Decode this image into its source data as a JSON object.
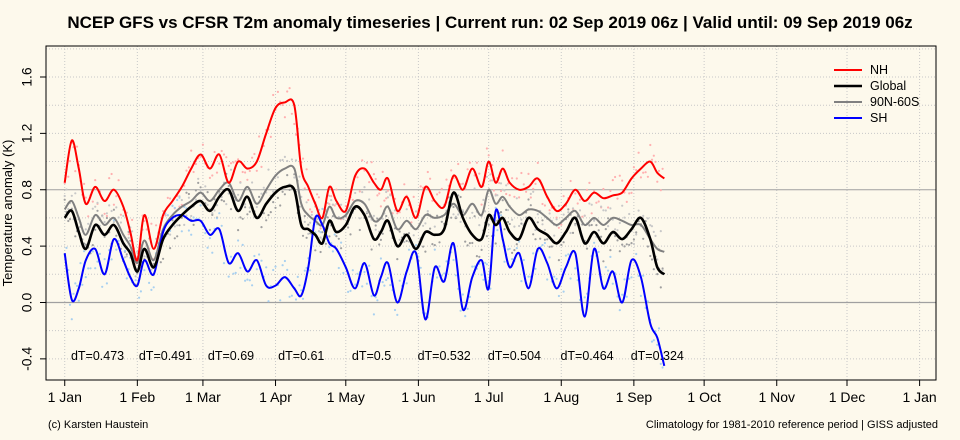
{
  "chart_data": {
    "type": "line",
    "title": "NCEP GFS vs CFSR T2m anomaly timeseries | Current run: 02 Sep 2019 06z | Valid until: 09 Sep 2019 06z",
    "xlabel": "",
    "ylabel": "Temperature anomaly (K)",
    "ylim": [
      -0.55,
      1.82
    ],
    "xlim": [
      -8,
      372
    ],
    "yticks": [
      -0.4,
      0.0,
      0.4,
      0.8,
      1.2,
      1.6
    ],
    "xticks": [
      {
        "day": 0,
        "label": "1 Jan"
      },
      {
        "day": 31,
        "label": "1 Feb"
      },
      {
        "day": 59,
        "label": "1 Mar"
      },
      {
        "day": 90,
        "label": "1 Apr"
      },
      {
        "day": 120,
        "label": "1 May"
      },
      {
        "day": 151,
        "label": "1 Jun"
      },
      {
        "day": 181,
        "label": "1 Jul"
      },
      {
        "day": 212,
        "label": "1 Aug"
      },
      {
        "day": 243,
        "label": "1 Sep"
      },
      {
        "day": 273,
        "label": "1 Oct"
      },
      {
        "day": 304,
        "label": "1 Nov"
      },
      {
        "day": 334,
        "label": "1 Dec"
      },
      {
        "day": 365,
        "label": "1 Jan"
      }
    ],
    "grid": true,
    "legend_position": "top-right",
    "series": [
      {
        "name": "NH",
        "color": "#ff0000",
        "dots_color": "#ffb0b0",
        "x": [
          0,
          3,
          6,
          9,
          13,
          17,
          21,
          25,
          28,
          31,
          34,
          38,
          42,
          46,
          50,
          54,
          58,
          62,
          66,
          70,
          74,
          78,
          82,
          86,
          90,
          94,
          98,
          101,
          104,
          107,
          110,
          113,
          116,
          120,
          124,
          128,
          132,
          135,
          138,
          142,
          146,
          150,
          154,
          158,
          162,
          166,
          170,
          174,
          178,
          181,
          184,
          187,
          190,
          194,
          198,
          202,
          206,
          210,
          214,
          218,
          222,
          226,
          230,
          234,
          238,
          242,
          246,
          250,
          253,
          256
        ],
        "y": [
          0.85,
          1.15,
          0.95,
          0.7,
          0.82,
          0.72,
          0.8,
          0.68,
          0.5,
          0.3,
          0.62,
          0.38,
          0.62,
          0.72,
          0.82,
          0.95,
          1.05,
          0.95,
          1.05,
          0.85,
          1.0,
          0.95,
          1.0,
          1.2,
          1.38,
          1.42,
          1.4,
          0.95,
          0.82,
          0.7,
          0.6,
          0.82,
          0.72,
          0.65,
          0.9,
          0.95,
          0.85,
          0.8,
          0.88,
          0.65,
          0.75,
          0.6,
          0.82,
          0.72,
          0.68,
          0.9,
          0.8,
          0.95,
          0.82,
          1.0,
          0.85,
          0.95,
          0.85,
          0.8,
          0.82,
          0.88,
          0.75,
          0.65,
          0.7,
          0.8,
          0.72,
          0.78,
          0.74,
          0.76,
          0.78,
          0.88,
          0.95,
          1.0,
          0.92,
          0.88
        ]
      },
      {
        "name": "Global",
        "color": "#000000",
        "dots_color": "#a0a0a0",
        "x": [
          0,
          3,
          6,
          9,
          13,
          17,
          21,
          25,
          28,
          31,
          34,
          38,
          42,
          46,
          50,
          54,
          58,
          62,
          66,
          70,
          74,
          78,
          82,
          86,
          90,
          94,
          98,
          101,
          104,
          107,
          110,
          113,
          116,
          120,
          124,
          128,
          132,
          135,
          138,
          142,
          146,
          150,
          154,
          158,
          162,
          166,
          170,
          174,
          178,
          181,
          184,
          187,
          190,
          194,
          198,
          202,
          206,
          210,
          214,
          218,
          222,
          226,
          230,
          234,
          238,
          242,
          246,
          250,
          253,
          256
        ],
        "y": [
          0.6,
          0.65,
          0.5,
          0.38,
          0.55,
          0.48,
          0.55,
          0.42,
          0.35,
          0.22,
          0.38,
          0.25,
          0.45,
          0.55,
          0.62,
          0.68,
          0.72,
          0.65,
          0.75,
          0.8,
          0.65,
          0.75,
          0.6,
          0.7,
          0.78,
          0.82,
          0.8,
          0.55,
          0.52,
          0.48,
          0.42,
          0.58,
          0.5,
          0.55,
          0.68,
          0.62,
          0.45,
          0.5,
          0.58,
          0.4,
          0.48,
          0.38,
          0.5,
          0.48,
          0.52,
          0.78,
          0.6,
          0.48,
          0.45,
          0.62,
          0.55,
          0.6,
          0.5,
          0.45,
          0.6,
          0.52,
          0.48,
          0.42,
          0.5,
          0.6,
          0.42,
          0.5,
          0.42,
          0.5,
          0.45,
          0.52,
          0.6,
          0.45,
          0.25,
          0.2
        ]
      },
      {
        "name": "90N-60S",
        "color": "#808080",
        "dots_color": "#c8c8c8",
        "x": [
          0,
          3,
          6,
          9,
          13,
          17,
          21,
          25,
          28,
          31,
          34,
          38,
          42,
          46,
          50,
          54,
          58,
          62,
          66,
          70,
          74,
          78,
          82,
          86,
          90,
          94,
          98,
          101,
          104,
          107,
          110,
          113,
          116,
          120,
          124,
          128,
          132,
          135,
          138,
          142,
          146,
          150,
          154,
          158,
          162,
          166,
          170,
          174,
          178,
          181,
          184,
          187,
          190,
          194,
          198,
          202,
          206,
          210,
          214,
          218,
          222,
          226,
          230,
          234,
          238,
          242,
          246,
          250,
          253,
          256
        ],
        "y": [
          0.66,
          0.72,
          0.6,
          0.48,
          0.62,
          0.55,
          0.6,
          0.48,
          0.4,
          0.28,
          0.44,
          0.3,
          0.52,
          0.62,
          0.68,
          0.72,
          0.78,
          0.72,
          0.8,
          0.85,
          0.72,
          0.82,
          0.7,
          0.8,
          0.9,
          0.95,
          0.95,
          0.7,
          0.62,
          0.58,
          0.55,
          0.68,
          0.6,
          0.62,
          0.72,
          0.7,
          0.58,
          0.6,
          0.68,
          0.52,
          0.58,
          0.52,
          0.62,
          0.6,
          0.62,
          0.7,
          0.62,
          0.7,
          0.62,
          0.8,
          0.7,
          0.75,
          0.68,
          0.62,
          0.66,
          0.65,
          0.6,
          0.55,
          0.6,
          0.65,
          0.55,
          0.6,
          0.55,
          0.6,
          0.58,
          0.55,
          0.55,
          0.45,
          0.38,
          0.36
        ]
      },
      {
        "name": "SH",
        "color": "#0000ff",
        "dots_color": "#a8d0f0",
        "x": [
          0,
          3,
          6,
          9,
          13,
          17,
          21,
          25,
          28,
          31,
          34,
          38,
          42,
          46,
          50,
          54,
          58,
          62,
          66,
          70,
          74,
          78,
          82,
          86,
          90,
          94,
          98,
          101,
          104,
          107,
          110,
          113,
          116,
          120,
          124,
          128,
          132,
          135,
          138,
          142,
          146,
          150,
          154,
          158,
          162,
          166,
          170,
          174,
          178,
          181,
          184,
          187,
          190,
          194,
          198,
          202,
          206,
          210,
          214,
          218,
          222,
          226,
          230,
          234,
          238,
          242,
          246,
          250,
          253,
          256
        ],
        "y": [
          0.35,
          0.02,
          0.1,
          0.3,
          0.38,
          0.2,
          0.45,
          0.3,
          0.18,
          0.12,
          0.3,
          0.2,
          0.5,
          0.6,
          0.62,
          0.58,
          0.58,
          0.48,
          0.52,
          0.28,
          0.35,
          0.22,
          0.3,
          0.12,
          0.12,
          0.18,
          0.1,
          0.05,
          0.25,
          0.6,
          0.55,
          0.42,
          0.38,
          0.25,
          0.1,
          0.28,
          0.05,
          0.18,
          0.28,
          0.0,
          0.22,
          0.35,
          -0.12,
          0.25,
          0.15,
          0.42,
          -0.05,
          0.18,
          0.3,
          0.1,
          0.65,
          0.45,
          0.25,
          0.35,
          0.1,
          0.38,
          0.28,
          0.1,
          0.25,
          0.35,
          -0.1,
          0.38,
          0.1,
          0.22,
          0.0,
          0.3,
          0.18,
          -0.15,
          -0.25,
          -0.45
        ]
      }
    ],
    "annotations": [
      "dT=0.473",
      "dT=0.491",
      "dT=0.69",
      "dT=0.61",
      "dT=0.5",
      "dT=0.532",
      "dT=0.504",
      "dT=0.464",
      "dT=0.324"
    ],
    "annotation_days": [
      14,
      43,
      71,
      101,
      131,
      162,
      192,
      223,
      253
    ]
  },
  "footer": {
    "left": "(c) Karsten Haustein",
    "right": "Climatology for 1981-2010 reference period | GISS adjusted"
  }
}
